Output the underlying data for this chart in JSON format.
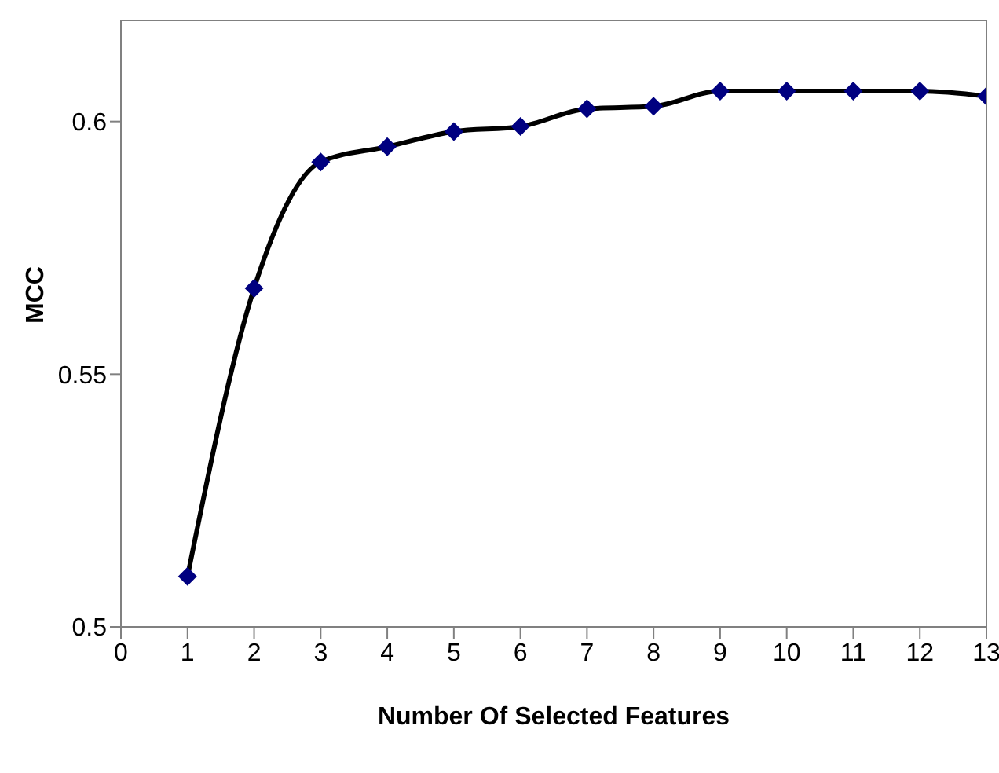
{
  "chart_data": {
    "type": "line",
    "xlabel": "Number Of Selected Features",
    "ylabel": "MCC",
    "x": [
      1,
      2,
      3,
      4,
      5,
      6,
      7,
      8,
      9,
      10,
      11,
      12,
      13
    ],
    "series": [
      {
        "color": "#000000",
        "colors": [
          "#000080",
          "#000080",
          "#000080",
          "#000080",
          "#000080",
          "#000080",
          "#000080",
          "#000080",
          "#000080",
          "#000080",
          "#000080",
          "#000080",
          "#000080"
        ],
        "values": [
          0.51,
          0.567,
          0.592,
          0.595,
          0.598,
          0.599,
          0.6025,
          0.603,
          0.606,
          0.606,
          0.606,
          0.606,
          0.605
        ]
      }
    ],
    "xlim": [
      0,
      13
    ],
    "xticks": [
      0,
      1,
      2,
      3,
      4,
      5,
      6,
      7,
      8,
      9,
      10,
      11,
      12,
      13
    ],
    "ylim": [
      0.5,
      0.62
    ],
    "yticks": [
      0.5,
      0.55,
      0.6
    ],
    "grid": false,
    "legend": false,
    "marker": "diamond",
    "line_style": "solid"
  }
}
